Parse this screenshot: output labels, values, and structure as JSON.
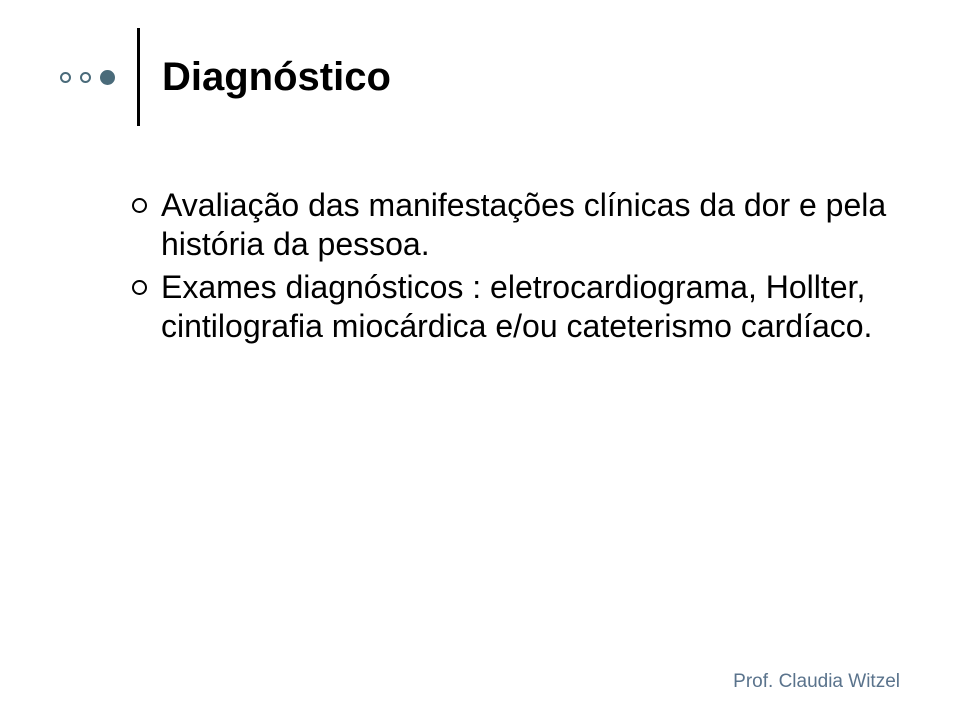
{
  "colors": {
    "accent": "#4a6b7a",
    "text": "#000000",
    "footer": "#5a738c",
    "background": "#ffffff"
  },
  "header": {
    "title": "Diagnóstico",
    "dots": {
      "small_border_color": "#4a6b7a",
      "small_fill_color": "#ffffff",
      "large_fill_color": "#4a6b7a"
    }
  },
  "content": {
    "items": [
      "Avaliação das manifestações clínicas da dor e pela história da pessoa.",
      "Exames  diagnósticos : eletrocardiograma, Hollter, cintilografia miocárdica e/ou cateterismo cardíaco."
    ]
  },
  "footer": {
    "prefix": "Prof. ",
    "name": "Claudia Witzel"
  }
}
